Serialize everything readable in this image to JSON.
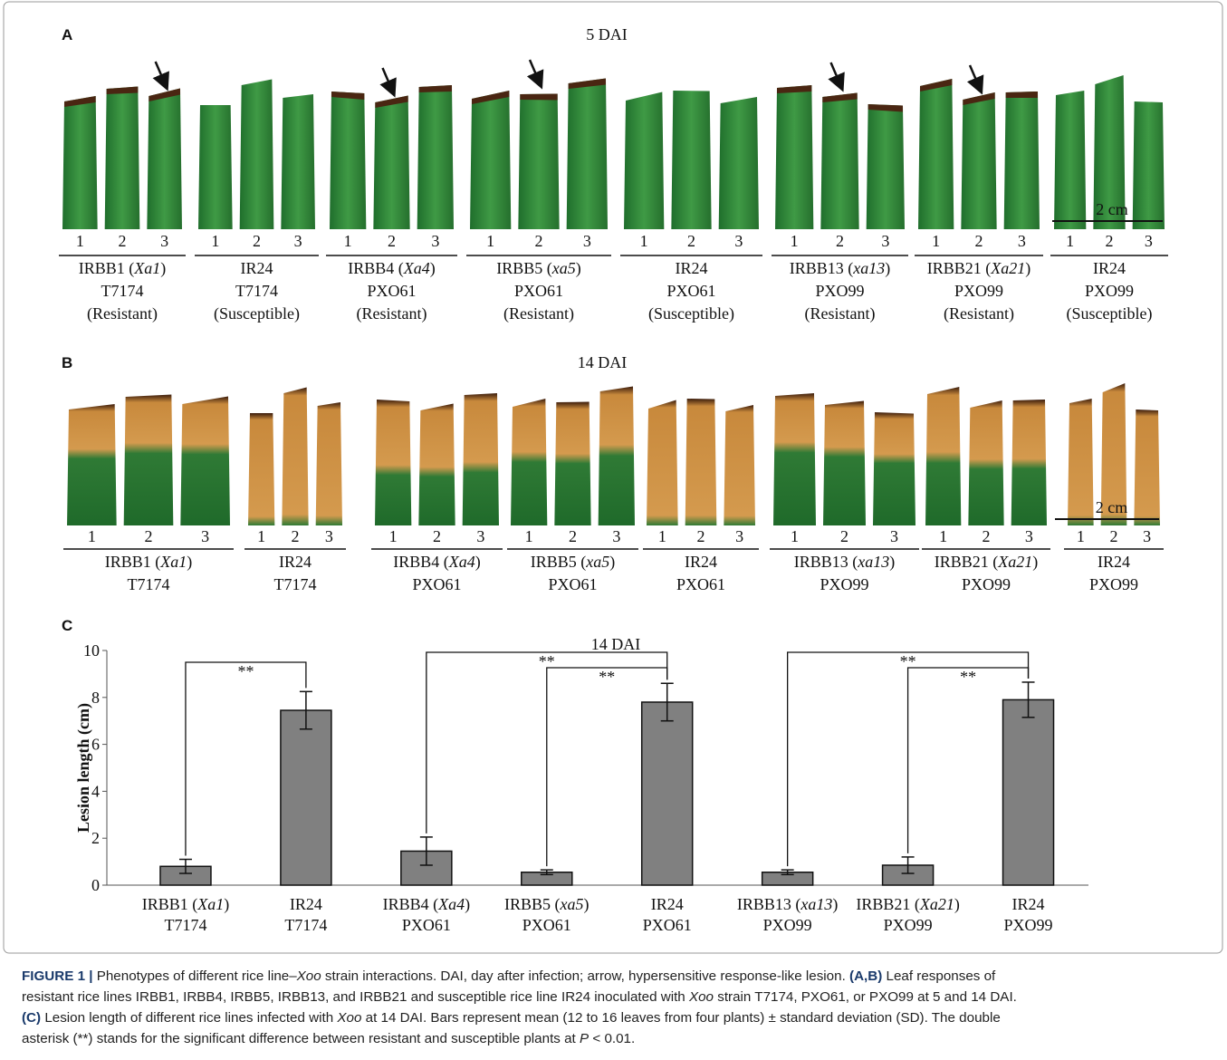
{
  "panel_a": {
    "label": "A",
    "title": "5 DAI",
    "scale_bar": "2 cm",
    "groups": [
      {
        "leaves": [
          1,
          2,
          3
        ],
        "lines": [
          [
            "IRBB1 (",
            "Xa1",
            ")"
          ],
          [
            "T7174"
          ],
          [
            "(Resistant)"
          ]
        ]
      },
      {
        "leaves": [
          1,
          2,
          3
        ],
        "lines": [
          [
            "IR24"
          ],
          [
            "T7174"
          ],
          [
            "(Susceptible)"
          ]
        ]
      },
      {
        "leaves": [
          1,
          2,
          3
        ],
        "lines": [
          [
            "IRBB4 (",
            "Xa4",
            ")"
          ],
          [
            "PXO61"
          ],
          [
            "(Resistant)"
          ]
        ]
      },
      {
        "leaves": [
          1,
          2,
          3
        ],
        "lines": [
          [
            "IRBB5 (",
            "xa5",
            ")"
          ],
          [
            "PXO61"
          ],
          [
            "(Resistant)"
          ]
        ]
      },
      {
        "leaves": [
          1,
          2,
          3
        ],
        "lines": [
          [
            "IR24"
          ],
          [
            "PXO61"
          ],
          [
            "(Susceptible)"
          ]
        ]
      },
      {
        "leaves": [
          1,
          2,
          3
        ],
        "lines": [
          [
            "IRBB13 (",
            "xa13",
            ")"
          ],
          [
            "PXO99"
          ],
          [
            "(Resistant)"
          ]
        ]
      },
      {
        "leaves": [
          1,
          2,
          3
        ],
        "lines": [
          [
            "IRBB21 (",
            "Xa21",
            ")"
          ],
          [
            "PXO99"
          ],
          [
            "(Resistant)"
          ]
        ]
      },
      {
        "leaves": [
          1,
          2,
          3
        ],
        "lines": [
          [
            "IR24"
          ],
          [
            "PXO99"
          ],
          [
            "(Susceptible)"
          ]
        ]
      }
    ]
  },
  "panel_b": {
    "label": "B",
    "title": "14 DAI",
    "scale_bar": "2 cm",
    "groups": [
      {
        "leaves": [
          1,
          2,
          3
        ],
        "lines": [
          [
            "IRBB1 (",
            "Xa1",
            ")"
          ],
          [
            "T7174"
          ]
        ]
      },
      {
        "leaves": [
          1,
          2,
          3
        ],
        "lines": [
          [
            "IR24"
          ],
          [
            "T7174"
          ]
        ]
      },
      {
        "leaves": [
          1,
          2,
          3
        ],
        "lines": [
          [
            "IRBB4 (",
            "Xa4",
            ")"
          ],
          [
            "PXO61"
          ]
        ]
      },
      {
        "leaves": [
          1,
          2,
          3
        ],
        "lines": [
          [
            "IRBB5 (",
            "xa5",
            ")"
          ],
          [
            "PXO61"
          ]
        ]
      },
      {
        "leaves": [
          1,
          2,
          3
        ],
        "lines": [
          [
            "IR24"
          ],
          [
            "PXO61"
          ]
        ]
      },
      {
        "leaves": [
          1,
          2,
          3
        ],
        "lines": [
          [
            "IRBB13 (",
            "xa13",
            ")"
          ],
          [
            "PXO99"
          ]
        ]
      },
      {
        "leaves": [
          1,
          2,
          3
        ],
        "lines": [
          [
            "IRBB21 (",
            "Xa21",
            ")"
          ],
          [
            "PXO99"
          ]
        ]
      },
      {
        "leaves": [
          1,
          2,
          3
        ],
        "lines": [
          [
            "IR24"
          ],
          [
            "PXO99"
          ]
        ]
      }
    ]
  },
  "chart_data": {
    "type": "bar",
    "label": "C",
    "title": "14 DAI",
    "ylabel": "Lesion length (cm)",
    "categories": [
      [
        [
          "IRBB1 (",
          "Xa1",
          ")"
        ],
        [
          "T7174"
        ]
      ],
      [
        [
          "IR24"
        ],
        [
          "T7174"
        ]
      ],
      [
        [
          "IRBB4 (",
          "Xa4",
          ")"
        ],
        [
          "PXO61"
        ]
      ],
      [
        [
          "IRBB5 (",
          "xa5",
          ")"
        ],
        [
          "PXO61"
        ]
      ],
      [
        [
          "IR24"
        ],
        [
          "PXO61"
        ]
      ],
      [
        [
          "IRBB13 (",
          "xa13",
          ")"
        ],
        [
          "PXO99"
        ]
      ],
      [
        [
          "IRBB21 (",
          "Xa21",
          ")"
        ],
        [
          "PXO99"
        ]
      ],
      [
        [
          "IR24"
        ],
        [
          "PXO99"
        ]
      ]
    ],
    "values": [
      0.8,
      7.45,
      1.45,
      0.55,
      7.8,
      0.55,
      0.85,
      7.9
    ],
    "errors": [
      0.3,
      0.8,
      0.6,
      0.1,
      0.8,
      0.1,
      0.35,
      0.75
    ],
    "color": "#808080",
    "ylim": [
      0,
      10
    ],
    "yticks": [
      0,
      2,
      4,
      6,
      8,
      10
    ],
    "significance": [
      {
        "from": 0,
        "to": 1,
        "label": "**"
      },
      {
        "from": 2,
        "to": 4,
        "label": "**"
      },
      {
        "from": 3,
        "to": 4,
        "label": "**"
      },
      {
        "from": 5,
        "to": 7,
        "label": "**"
      },
      {
        "from": 6,
        "to": 7,
        "label": "**"
      }
    ]
  },
  "caption": [
    [
      {
        "text": "FIGURE 1 |",
        "style": "bold"
      },
      {
        "text": " Phenotypes of different rice line–",
        "style": "normal"
      },
      {
        "text": "Xoo",
        "style": "italic"
      },
      {
        "text": " strain interactions. DAI, day after infection; arrow, hypersensitive response-like lesion. ",
        "style": "normal"
      },
      {
        "text": "(A,B)",
        "style": "bold"
      },
      {
        "text": " Leaf responses of",
        "style": "normal"
      }
    ],
    [
      {
        "text": "resistant rice lines IRBB1, IRBB4, IRBB5, IRBB13, and IRBB21 and susceptible rice line IR24 inoculated with ",
        "style": "normal"
      },
      {
        "text": "Xoo",
        "style": "italic"
      },
      {
        "text": " strain T7174, PXO61, or PXO99 at 5 and 14 DAI.",
        "style": "normal"
      }
    ],
    [
      {
        "text": "(C)",
        "style": "bold"
      },
      {
        "text": " Lesion length of different rice lines infected with ",
        "style": "normal"
      },
      {
        "text": "Xoo",
        "style": "italic"
      },
      {
        "text": " at 14 DAI. Bars represent mean (12 to 16 leaves from four plants) ± standard deviation (SD). The double",
        "style": "normal"
      }
    ],
    [
      {
        "text": "asterisk (**) stands for the significant difference between resistant and susceptible plants at ",
        "style": "normal"
      },
      {
        "text": "P",
        "style": "italic"
      },
      {
        "text": " < 0.01.",
        "style": "normal"
      }
    ]
  ]
}
